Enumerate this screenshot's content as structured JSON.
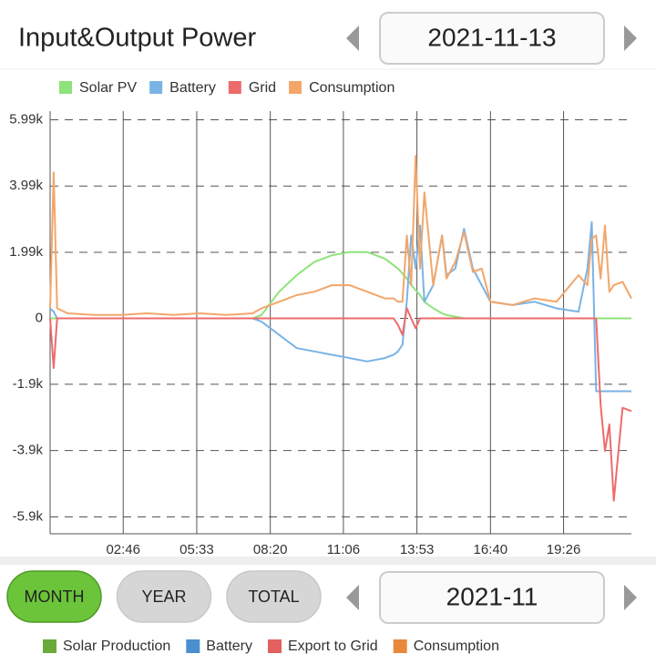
{
  "header": {
    "title": "Input&Output Power",
    "date": "2021-11-13"
  },
  "chart_data": {
    "type": "line",
    "x": [
      0,
      8,
      16,
      40,
      100,
      160,
      220,
      280,
      340,
      400,
      460,
      480,
      520,
      560,
      600,
      640,
      680,
      720,
      760,
      780,
      790,
      800,
      810,
      820,
      830,
      840,
      850,
      870,
      890,
      900,
      920,
      940,
      960,
      980,
      1000,
      1050,
      1100,
      1150,
      1200,
      1220,
      1230,
      1240,
      1250,
      1260,
      1270,
      1280,
      1300,
      1320
    ],
    "xlim": [
      0,
      1320
    ],
    "xticks": [
      {
        "value": 166,
        "label": "02:46"
      },
      {
        "value": 333,
        "label": "05:33"
      },
      {
        "value": 500,
        "label": "08:20"
      },
      {
        "value": 666,
        "label": "11:06"
      },
      {
        "value": 833,
        "label": "13:53"
      },
      {
        "value": 1000,
        "label": "16:40"
      },
      {
        "value": 1166,
        "label": "19:26"
      }
    ],
    "ylim": [
      -6500,
      6250
    ],
    "yticks": [
      {
        "value": 5990,
        "label": "5.99k"
      },
      {
        "value": 3990,
        "label": "3.99k"
      },
      {
        "value": 1990,
        "label": "1.99k"
      },
      0,
      {
        "value": -1990,
        "label": "-1.9k"
      },
      {
        "value": -3990,
        "label": "-3.9k"
      },
      {
        "value": -5990,
        "label": "-5.9k"
      }
    ],
    "grid": true,
    "legend": "top-left",
    "series": [
      {
        "name": "Solar PV",
        "color": "#8ee37a",
        "values": [
          0,
          0,
          0,
          0,
          0,
          0,
          0,
          0,
          0,
          0,
          0,
          100,
          800,
          1300,
          1700,
          1900,
          2000,
          2000,
          1800,
          1600,
          1500,
          1350,
          1200,
          1000,
          850,
          700,
          500,
          300,
          150,
          100,
          50,
          0,
          0,
          0,
          0,
          0,
          0,
          0,
          0,
          0,
          0,
          0,
          0,
          0,
          0,
          0,
          0,
          0
        ]
      },
      {
        "name": "Battery",
        "color": "#7ab3e6",
        "values": [
          300,
          200,
          0,
          0,
          0,
          0,
          0,
          0,
          0,
          0,
          0,
          -100,
          -500,
          -900,
          -1000,
          -1100,
          -1200,
          -1300,
          -1200,
          -1100,
          -1000,
          -800,
          500,
          2500,
          1500,
          2800,
          500,
          1000,
          2500,
          1300,
          1500,
          2700,
          1500,
          1000,
          500,
          400,
          500,
          300,
          200,
          1500,
          2900,
          -2200,
          -2200,
          -2200,
          -2200,
          -2200,
          -2200,
          -2200
        ]
      },
      {
        "name": "Grid",
        "color": "#ee6b6b",
        "values": [
          0,
          -1500,
          0,
          0,
          0,
          0,
          0,
          0,
          0,
          0,
          0,
          0,
          0,
          0,
          0,
          0,
          0,
          0,
          0,
          0,
          -200,
          -500,
          300,
          0,
          -300,
          0,
          0,
          0,
          0,
          0,
          0,
          0,
          0,
          0,
          0,
          0,
          0,
          0,
          0,
          0,
          0,
          0,
          -2600,
          -4000,
          -3200,
          -5500,
          -2700,
          -2800
        ]
      },
      {
        "name": "Consumption",
        "color": "#f2a66a",
        "values": [
          300,
          4400,
          300,
          150,
          100,
          100,
          150,
          100,
          150,
          100,
          150,
          300,
          500,
          700,
          800,
          1000,
          1000,
          800,
          600,
          600,
          500,
          500,
          2500,
          1000,
          4900,
          1500,
          3800,
          1000,
          2500,
          1200,
          1700,
          2600,
          1400,
          1500,
          500,
          400,
          600,
          500,
          1300,
          1000,
          2400,
          2500,
          1200,
          2800,
          800,
          1000,
          1100,
          600
        ]
      }
    ]
  },
  "period_selector": {
    "buttons": [
      "MONTH",
      "YEAR",
      "TOTAL"
    ],
    "active": 0,
    "date": "2021-11"
  },
  "summary_legend": {
    "items": [
      {
        "name": "Solar Production",
        "color": "#6aaa3a"
      },
      {
        "name": "Battery",
        "color": "#4a8fd0"
      },
      {
        "name": "Export to Grid",
        "color": "#e26060"
      },
      {
        "name": "Consumption",
        "color": "#e8883a"
      }
    ]
  }
}
